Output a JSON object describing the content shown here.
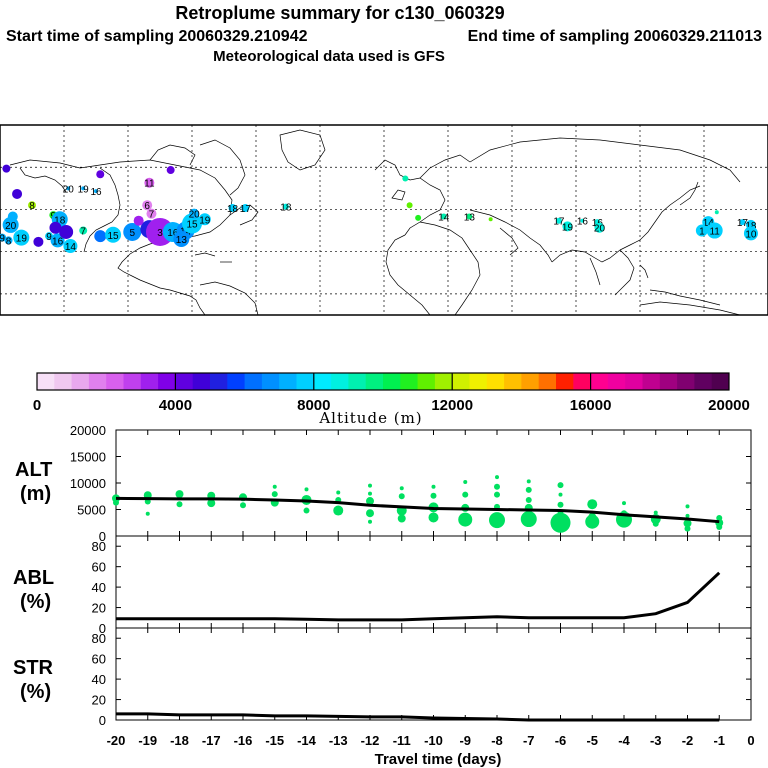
{
  "header": {
    "title": "Retroplume summary for c130_060329",
    "start_label": "Start time of sampling 20060329.210942",
    "end_label": "End time of sampling 20060329.211013",
    "met_label": "Meteorological data used is GFS"
  },
  "colorbar": {
    "label": "Altitude (m)",
    "ticks": [
      "0",
      "4000",
      "8000",
      "12000",
      "16000",
      "20000"
    ],
    "colors": [
      "#f7e0f7",
      "#f0c8f0",
      "#e8a8ee",
      "#e080ee",
      "#d860ee",
      "#c040ee",
      "#a020ee",
      "#8000e8",
      "#6000e0",
      "#4000d8",
      "#2020e0",
      "#0040ff",
      "#0070ff",
      "#0090ff",
      "#00b0ff",
      "#00d0ff",
      "#00eaff",
      "#00f0e0",
      "#00f0b0",
      "#00f080",
      "#00f050",
      "#20f020",
      "#60f000",
      "#a0f000",
      "#d0f000",
      "#f0f000",
      "#ffe000",
      "#ffc000",
      "#ffa000",
      "#ff7000",
      "#ff2000",
      "#ff0060",
      "#ff0090",
      "#f000a0",
      "#e000a0",
      "#c00090",
      "#a00080",
      "#800070",
      "#600060",
      "#500050"
    ]
  },
  "chart_data": [
    {
      "type": "scatter",
      "panel": "ALT",
      "ylabel": "ALT (m)",
      "ylim": [
        0,
        20000
      ],
      "yticks": [
        "0",
        "5000",
        "10000",
        "15000",
        "20000"
      ],
      "mean_line": {
        "x": [
          -20,
          -19,
          -18,
          -17,
          -16,
          -15,
          -14,
          -13,
          -12,
          -11,
          -10,
          -9,
          -8,
          -7,
          -6,
          -5,
          -4,
          -3,
          -2,
          -1
        ],
        "y": [
          7100,
          7050,
          7000,
          7000,
          6950,
          6800,
          6600,
          6300,
          5800,
          5500,
          5200,
          5100,
          5000,
          4900,
          4800,
          4500,
          4000,
          3600,
          3200,
          2700
        ]
      },
      "points": [
        {
          "x": -20,
          "y": 7100,
          "r": 4
        },
        {
          "x": -20,
          "y": 6300,
          "r": 3
        },
        {
          "x": -19,
          "y": 7700,
          "r": 4
        },
        {
          "x": -19,
          "y": 6500,
          "r": 3
        },
        {
          "x": -19,
          "y": 4200,
          "r": 2
        },
        {
          "x": -18,
          "y": 7900,
          "r": 4
        },
        {
          "x": -18,
          "y": 6000,
          "r": 3
        },
        {
          "x": -17,
          "y": 7600,
          "r": 4
        },
        {
          "x": -17,
          "y": 6200,
          "r": 4
        },
        {
          "x": -16,
          "y": 7300,
          "r": 4
        },
        {
          "x": -16,
          "y": 5800,
          "r": 3
        },
        {
          "x": -15,
          "y": 9300,
          "r": 2
        },
        {
          "x": -15,
          "y": 7900,
          "r": 3
        },
        {
          "x": -15,
          "y": 6300,
          "r": 4
        },
        {
          "x": -14,
          "y": 8800,
          "r": 2
        },
        {
          "x": -14,
          "y": 6800,
          "r": 5
        },
        {
          "x": -14,
          "y": 4800,
          "r": 3
        },
        {
          "x": -13,
          "y": 8200,
          "r": 2
        },
        {
          "x": -13,
          "y": 6800,
          "r": 3
        },
        {
          "x": -13,
          "y": 4800,
          "r": 5
        },
        {
          "x": -12,
          "y": 9500,
          "r": 2
        },
        {
          "x": -12,
          "y": 8000,
          "r": 2
        },
        {
          "x": -12,
          "y": 6600,
          "r": 4
        },
        {
          "x": -12,
          "y": 4300,
          "r": 4
        },
        {
          "x": -12,
          "y": 2700,
          "r": 2
        },
        {
          "x": -11,
          "y": 9000,
          "r": 2
        },
        {
          "x": -11,
          "y": 7500,
          "r": 3
        },
        {
          "x": -11,
          "y": 4800,
          "r": 5
        },
        {
          "x": -11,
          "y": 3300,
          "r": 4
        },
        {
          "x": -10,
          "y": 9300,
          "r": 2
        },
        {
          "x": -10,
          "y": 7600,
          "r": 3
        },
        {
          "x": -10,
          "y": 5400,
          "r": 5
        },
        {
          "x": -10,
          "y": 3500,
          "r": 5
        },
        {
          "x": -9,
          "y": 10200,
          "r": 2
        },
        {
          "x": -9,
          "y": 7800,
          "r": 3
        },
        {
          "x": -9,
          "y": 5300,
          "r": 4
        },
        {
          "x": -9,
          "y": 3100,
          "r": 7
        },
        {
          "x": -8,
          "y": 11100,
          "r": 2
        },
        {
          "x": -8,
          "y": 9300,
          "r": 3
        },
        {
          "x": -8,
          "y": 7800,
          "r": 3
        },
        {
          "x": -8,
          "y": 5500,
          "r": 3
        },
        {
          "x": -8,
          "y": 3000,
          "r": 8
        },
        {
          "x": -7,
          "y": 10300,
          "r": 2
        },
        {
          "x": -7,
          "y": 8700,
          "r": 3
        },
        {
          "x": -7,
          "y": 6800,
          "r": 3
        },
        {
          "x": -7,
          "y": 5300,
          "r": 4
        },
        {
          "x": -7,
          "y": 3200,
          "r": 8
        },
        {
          "x": -6,
          "y": 9600,
          "r": 3
        },
        {
          "x": -6,
          "y": 7800,
          "r": 2
        },
        {
          "x": -6,
          "y": 5900,
          "r": 3
        },
        {
          "x": -6,
          "y": 4300,
          "r": 3
        },
        {
          "x": -6,
          "y": 2500,
          "r": 10
        },
        {
          "x": -5,
          "y": 6000,
          "r": 5
        },
        {
          "x": -5,
          "y": 3600,
          "r": 4
        },
        {
          "x": -5,
          "y": 2700,
          "r": 7
        },
        {
          "x": -4,
          "y": 6200,
          "r": 2
        },
        {
          "x": -4,
          "y": 4300,
          "r": 3
        },
        {
          "x": -4,
          "y": 3100,
          "r": 8
        },
        {
          "x": -3,
          "y": 4400,
          "r": 2
        },
        {
          "x": -3,
          "y": 3200,
          "r": 5
        },
        {
          "x": -3,
          "y": 2300,
          "r": 3
        },
        {
          "x": -2,
          "y": 5600,
          "r": 2
        },
        {
          "x": -2,
          "y": 3800,
          "r": 2
        },
        {
          "x": -2,
          "y": 2400,
          "r": 4
        },
        {
          "x": -2,
          "y": 1400,
          "r": 3
        },
        {
          "x": -1,
          "y": 3400,
          "r": 3
        },
        {
          "x": -1,
          "y": 2500,
          "r": 4
        },
        {
          "x": -1,
          "y": 1700,
          "r": 3
        }
      ],
      "color": "#00e060"
    },
    {
      "type": "line",
      "panel": "ABL",
      "ylabel": "ABL (%)",
      "ylim": [
        0,
        90
      ],
      "yticks": [
        "0",
        "20",
        "40",
        "60",
        "80"
      ],
      "x": [
        -20,
        -19,
        -18,
        -17,
        -16,
        -15,
        -14,
        -13,
        -12,
        -11,
        -10,
        -9,
        -8,
        -7,
        -6,
        -5,
        -4,
        -3,
        -2,
        -1
      ],
      "y": [
        9,
        9,
        9,
        9,
        9,
        9,
        8.5,
        8,
        8,
        8,
        9,
        10,
        11,
        10,
        10,
        10,
        10,
        14,
        25,
        54
      ]
    },
    {
      "type": "line",
      "panel": "STR",
      "ylabel": "STR (%)",
      "ylim": [
        0,
        90
      ],
      "yticks": [
        "0",
        "20",
        "40",
        "60",
        "80"
      ],
      "x": [
        -20,
        -19,
        -18,
        -17,
        -16,
        -15,
        -14,
        -13,
        -12,
        -11,
        -10,
        -9,
        -8,
        -7,
        -6,
        -5,
        -4,
        -3,
        -2,
        -1
      ],
      "y": [
        6,
        6,
        5,
        5,
        5,
        4,
        4,
        3.5,
        3,
        3,
        2,
        1.5,
        1,
        0,
        0,
        0,
        0,
        0,
        0,
        0
      ]
    }
  ],
  "xaxis": {
    "label": "Travel time (days)",
    "ticks": [
      "-20",
      "-19",
      "-18",
      "-17",
      "-16",
      "-15",
      "-14",
      "-13",
      "-12",
      "-11",
      "-10",
      "-9",
      "-8",
      "-7",
      "-6",
      "-5",
      "-4",
      "-3",
      "-2",
      "-1",
      "0"
    ]
  },
  "map": {
    "markers": [
      {
        "lon": -177,
        "lat": 59,
        "label": "",
        "color": "#4000d8",
        "r": 4
      },
      {
        "lon": -172,
        "lat": 41,
        "label": "",
        "color": "#4000d8",
        "r": 5
      },
      {
        "lon": -165,
        "lat": 33,
        "label": "8",
        "color": "#a0f000",
        "r": 4
      },
      {
        "lon": -175,
        "lat": 19,
        "label": "20",
        "color": "#00b0ff",
        "r": 8
      },
      {
        "lon": -174,
        "lat": 25,
        "label": "",
        "color": "#00b0ff",
        "r": 5
      },
      {
        "lon": -179,
        "lat": 10,
        "label": "9",
        "color": "#00b0ff",
        "r": 4
      },
      {
        "lon": -176,
        "lat": 8,
        "label": "8",
        "color": "#00b0ff",
        "r": 4
      },
      {
        "lon": -170,
        "lat": 10,
        "label": "19",
        "color": "#00d0ff",
        "r": 8
      },
      {
        "lon": -162,
        "lat": 7,
        "label": "",
        "color": "#4000d8",
        "r": 5
      },
      {
        "lon": -157,
        "lat": 11,
        "label": "9",
        "color": "#00d0ff",
        "r": 4
      },
      {
        "lon": -153,
        "lat": 8,
        "label": "16",
        "color": "#00b0ff",
        "r": 7
      },
      {
        "lon": -147,
        "lat": 4,
        "label": "14",
        "color": "#00d0ff",
        "r": 7
      },
      {
        "lon": -155,
        "lat": 26,
        "label": "9",
        "color": "#20f020",
        "r": 4
      },
      {
        "lon": -152,
        "lat": 23,
        "label": "18",
        "color": "#00b0ff",
        "r": 8
      },
      {
        "lon": -154,
        "lat": 17,
        "label": "",
        "color": "#4000d8",
        "r": 6
      },
      {
        "lon": -149,
        "lat": 14,
        "label": "",
        "color": "#4000d8",
        "r": 7
      },
      {
        "lon": -141,
        "lat": 15,
        "label": "7",
        "color": "#00f0b0",
        "r": 4
      },
      {
        "lon": -133,
        "lat": 11,
        "label": "",
        "color": "#0070ff",
        "r": 6
      },
      {
        "lon": -127,
        "lat": 12,
        "label": "15",
        "color": "#00d0ff",
        "r": 8
      },
      {
        "lon": -118,
        "lat": 14,
        "label": "5",
        "color": "#0090ff",
        "r": 9
      },
      {
        "lon": -110,
        "lat": 16,
        "label": "",
        "color": "#2020e0",
        "r": 9
      },
      {
        "lon": -105,
        "lat": 14,
        "label": "3",
        "color": "#a020ee",
        "r": 14
      },
      {
        "lon": -99,
        "lat": 14,
        "label": "16",
        "color": "#00b0ff",
        "r": 10
      },
      {
        "lon": -93,
        "lat": 15,
        "label": "14",
        "color": "#0090ff",
        "r": 9
      },
      {
        "lon": -95,
        "lat": 9,
        "label": "13",
        "color": "#0090ff",
        "r": 8
      },
      {
        "lon": -90,
        "lat": 20,
        "label": "15",
        "color": "#00d0ff",
        "r": 10
      },
      {
        "lon": -84,
        "lat": 23,
        "label": "19",
        "color": "#00d0ff",
        "r": 6
      },
      {
        "lon": -89,
        "lat": 27,
        "label": "20",
        "color": "#00b0ff",
        "r": 5
      },
      {
        "lon": -110,
        "lat": 49,
        "label": "11",
        "color": "#d860ee",
        "r": 5
      },
      {
        "lon": -111,
        "lat": 33,
        "label": "6",
        "color": "#e080ee",
        "r": 5
      },
      {
        "lon": -109,
        "lat": 27,
        "label": "7",
        "color": "#e080ee",
        "r": 5
      },
      {
        "lon": -115,
        "lat": 22,
        "label": "",
        "color": "#a020ee",
        "r": 5
      },
      {
        "lon": -133,
        "lat": 55,
        "label": "",
        "color": "#6000e0",
        "r": 4
      },
      {
        "lon": -100,
        "lat": 58,
        "label": "",
        "color": "#6000e0",
        "r": 4
      },
      {
        "lon": -148,
        "lat": 45,
        "label": "20",
        "color": "#00b0ff",
        "r": 2
      },
      {
        "lon": -141,
        "lat": 45,
        "label": "19",
        "color": "#00b0ff",
        "r": 2
      },
      {
        "lon": -135,
        "lat": 43,
        "label": "16",
        "color": "#00b0ff",
        "r": 2
      },
      {
        "lon": -71,
        "lat": 31,
        "label": "18",
        "color": "#00d0ff",
        "r": 4
      },
      {
        "lon": -65,
        "lat": 31,
        "label": "17",
        "color": "#00d0ff",
        "r": 4
      },
      {
        "lon": -46,
        "lat": 32,
        "label": "18",
        "color": "#00f0e0",
        "r": 3
      },
      {
        "lon": 10,
        "lat": 52,
        "label": "",
        "color": "#00f0b0",
        "r": 3
      },
      {
        "lon": 12,
        "lat": 33,
        "label": "",
        "color": "#60f000",
        "r": 3
      },
      {
        "lon": 16,
        "lat": 24,
        "label": "",
        "color": "#20f020",
        "r": 3
      },
      {
        "lon": 28,
        "lat": 25,
        "label": "14",
        "color": "#00f0b0",
        "r": 3
      },
      {
        "lon": 40,
        "lat": 25,
        "label": "13",
        "color": "#00f080",
        "r": 3
      },
      {
        "lon": 50,
        "lat": 23,
        "label": "",
        "color": "#60f000",
        "r": 2
      },
      {
        "lon": 82,
        "lat": 22,
        "label": "17",
        "color": "#00f0e0",
        "r": 3
      },
      {
        "lon": 86,
        "lat": 18,
        "label": "19",
        "color": "#00f0e0",
        "r": 5
      },
      {
        "lon": 93,
        "lat": 22,
        "label": "16",
        "color": "#00f0e0",
        "r": 2
      },
      {
        "lon": 100,
        "lat": 21,
        "label": "16",
        "color": "#00f0e0",
        "r": 3
      },
      {
        "lon": 101,
        "lat": 17,
        "label": "20",
        "color": "#00f0e0",
        "r": 5
      },
      {
        "lon": 156,
        "lat": 28,
        "label": "",
        "color": "#00f0b0",
        "r": 2
      },
      {
        "lon": 152,
        "lat": 21,
        "label": "14",
        "color": "#00d0ff",
        "r": 6
      },
      {
        "lon": 155,
        "lat": 15,
        "label": "11",
        "color": "#00d0ff",
        "r": 8
      },
      {
        "lon": 149,
        "lat": 15,
        "label": "1",
        "color": "#00d0ff",
        "r": 6
      },
      {
        "lon": 168,
        "lat": 21,
        "label": "17",
        "color": "#00d0ff",
        "r": 3
      },
      {
        "lon": 172,
        "lat": 19,
        "label": "18",
        "color": "#00d0ff",
        "r": 5
      },
      {
        "lon": 172,
        "lat": 13,
        "label": "10",
        "color": "#00d0ff",
        "r": 7
      }
    ]
  }
}
